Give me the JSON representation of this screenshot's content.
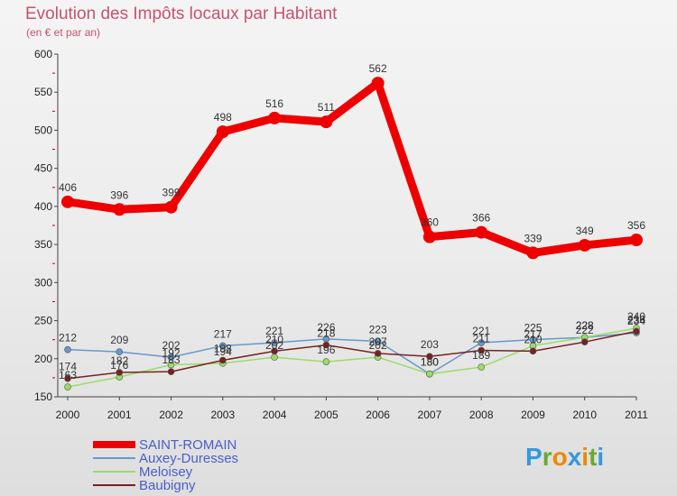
{
  "chart_data": {
    "type": "line",
    "title": "Evolution des Impôts locaux par Habitant",
    "subtitle": "(en € et par an)",
    "xlabel": "",
    "ylabel": "",
    "x": [
      "2000",
      "2001",
      "2002",
      "2003",
      "2004",
      "2005",
      "2006",
      "2007",
      "2008",
      "2009",
      "2010",
      "2011"
    ],
    "ylim": [
      150,
      600
    ],
    "yticks": [
      150,
      200,
      250,
      300,
      350,
      400,
      450,
      500,
      550,
      600
    ],
    "grid": false,
    "legend_position": "bottom-left",
    "series": [
      {
        "name": "SAINT-ROMAIN",
        "color": "#ee0000",
        "values": [
          406,
          396,
          399,
          498,
          516,
          511,
          562,
          360,
          366,
          339,
          349,
          356
        ],
        "labels": [
          "406",
          "396",
          "399",
          "498",
          "516",
          "511",
          "562",
          "360",
          "366",
          "339",
          "349",
          "356"
        ]
      },
      {
        "name": "Auxey-Duresses",
        "color": "#6699cc",
        "values": [
          212,
          209,
          202,
          217,
          221,
          226,
          223,
          180,
          221,
          225,
          228,
          234
        ],
        "labels": [
          "212",
          "209",
          "202",
          "217",
          "221",
          "226",
          "223",
          "180",
          "221",
          "225",
          "228",
          "234"
        ]
      },
      {
        "name": "Meloisey",
        "color": "#99dd66",
        "values": [
          163,
          176,
          192,
          194,
          202,
          196,
          202,
          180,
          189,
          217,
          228,
          240
        ],
        "labels": [
          "163",
          "176",
          "192",
          "194",
          "202",
          "196",
          "202",
          "180",
          "189",
          "217",
          "228",
          "240"
        ]
      },
      {
        "name": "Baubigny",
        "color": "#772222",
        "values": [
          174,
          182,
          183,
          198,
          210,
          218,
          207,
          203,
          211,
          210,
          222,
          236
        ],
        "labels": [
          "174",
          "182",
          "183",
          "198",
          "210",
          "218",
          "207",
          "203",
          "211",
          "210",
          "222",
          "236"
        ]
      }
    ]
  },
  "brand": {
    "text": "Proxiti",
    "letters": [
      "P",
      "r",
      "o",
      "x",
      "i",
      "t",
      "i"
    ],
    "colors": [
      "#3399dd",
      "#66aa33",
      "#ee8800",
      "#3399dd",
      "#ee8800",
      "#66aa33",
      "#3399dd"
    ]
  }
}
